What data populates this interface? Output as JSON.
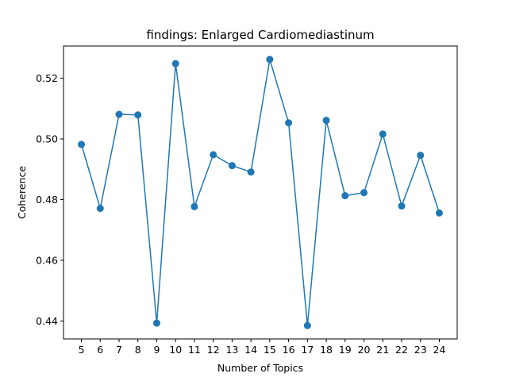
{
  "chart_data": {
    "type": "line",
    "title": "findings: Enlarged Cardiomediastinum",
    "xlabel": "Number of Topics",
    "ylabel": "Coherence",
    "x": [
      5,
      6,
      7,
      8,
      9,
      10,
      11,
      12,
      13,
      14,
      15,
      16,
      17,
      18,
      19,
      20,
      21,
      22,
      23,
      24
    ],
    "y": [
      0.4982,
      0.4771,
      0.5081,
      0.5079,
      0.4393,
      0.5248,
      0.4777,
      0.4948,
      0.4912,
      0.4891,
      0.5262,
      0.5053,
      0.4385,
      0.5061,
      0.4813,
      0.4823,
      0.5016,
      0.4779,
      0.4946,
      0.4756
    ],
    "xlim": [
      4.05,
      24.95
    ],
    "ylim": [
      0.4341,
      0.5306
    ],
    "yticks": [
      0.44,
      0.46,
      0.48,
      0.5,
      0.52
    ],
    "ytick_labels": [
      "0.44",
      "0.46",
      "0.48",
      "0.50",
      "0.52"
    ],
    "marker": "circle",
    "grid": false,
    "color": "#1f77b4"
  }
}
